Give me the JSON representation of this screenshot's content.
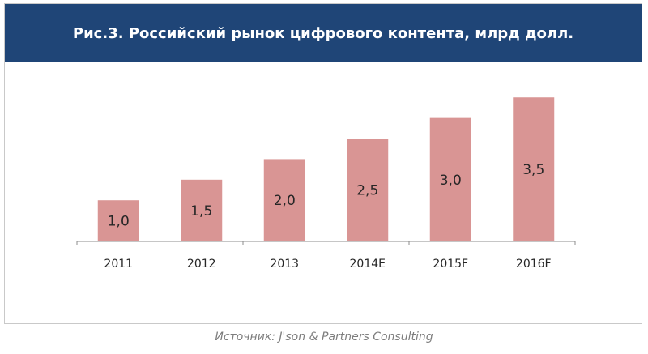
{
  "chart_data": {
    "type": "bar",
    "title": "Рис.3. Российский рынок цифрового контента, млрд долл.",
    "categories": [
      "2011",
      "2012",
      "2013",
      "2014E",
      "2015F",
      "2016F"
    ],
    "values": [
      1.0,
      1.5,
      2.0,
      2.5,
      3.0,
      3.5
    ],
    "data_labels": [
      "1,0",
      "1,5",
      "2,0",
      "2,5",
      "3,0",
      "3,5"
    ],
    "ylim": [
      0,
      3.8
    ],
    "grid": false,
    "legend": "none",
    "bar_color": "#d99594"
  },
  "header": {
    "title_bg": "#1f4577"
  },
  "footer": {
    "source": "Источник: J'son & Partners Consulting"
  }
}
